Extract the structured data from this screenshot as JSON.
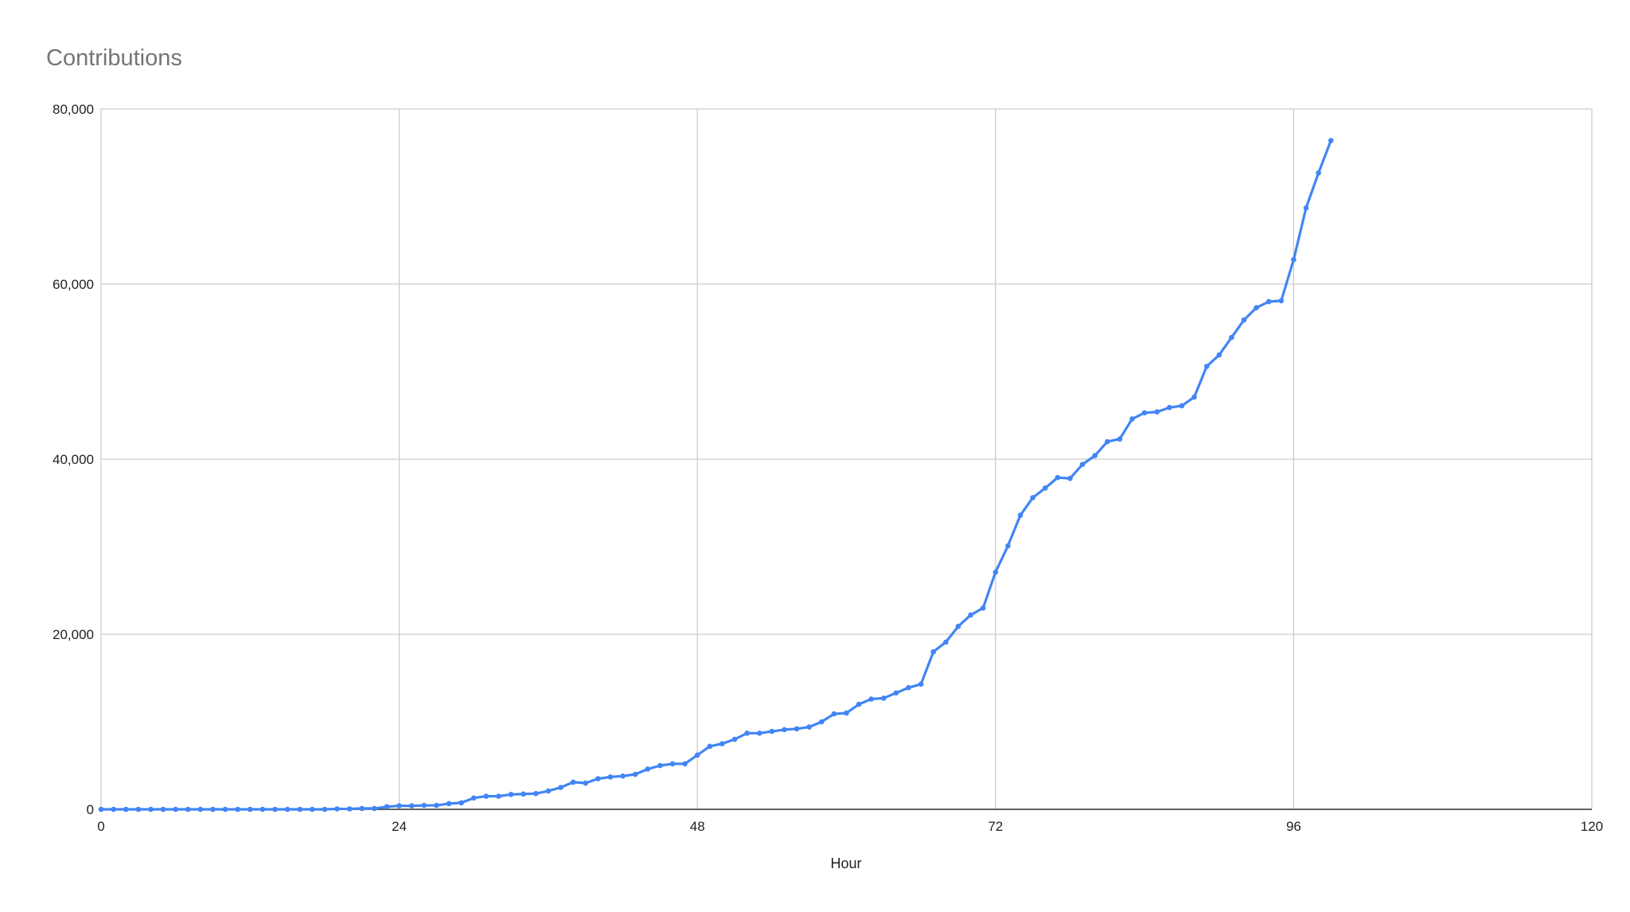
{
  "chart_data": {
    "type": "line",
    "title": "Contributions",
    "x_label": "Hour",
    "x": [
      0,
      1,
      2,
      3,
      4,
      5,
      6,
      7,
      8,
      9,
      10,
      11,
      12,
      13,
      14,
      15,
      16,
      17,
      18,
      19,
      20,
      21,
      22,
      23,
      24,
      25,
      26,
      27,
      28,
      29,
      30,
      31,
      32,
      33,
      34,
      35,
      36,
      37,
      38,
      39,
      40,
      41,
      42,
      43,
      44,
      45,
      46,
      47,
      48,
      49,
      50,
      51,
      52,
      53,
      54,
      55,
      56,
      57,
      58,
      59,
      60,
      61,
      62,
      63,
      64,
      65,
      66,
      67,
      68,
      69,
      70,
      71,
      72,
      73,
      74,
      75,
      76,
      77,
      78,
      79,
      80,
      81,
      82,
      83,
      84,
      85,
      86,
      87,
      88,
      89,
      90,
      91,
      92,
      93,
      94,
      95,
      96,
      97,
      98,
      99
    ],
    "series": [
      {
        "name": "Contributions",
        "color": "#4285f4",
        "values": [
          0,
          0,
          0,
          0,
          0,
          0,
          0,
          0,
          0,
          0,
          0,
          0,
          0,
          0,
          0,
          0,
          0,
          0,
          0,
          50,
          50,
          100,
          100,
          300,
          400,
          400,
          450,
          450,
          650,
          750,
          1300,
          1500,
          1500,
          1700,
          1750,
          1800,
          2100,
          2500,
          3100,
          3000,
          3500,
          3700,
          3800,
          4000,
          4600,
          5000,
          5200,
          5200,
          6200,
          7200,
          7500,
          8000,
          8700,
          8700,
          8900,
          9100,
          9200,
          9400,
          10000,
          10900,
          11000,
          12000,
          12600,
          12700,
          13300,
          13900,
          14300,
          18000,
          19100,
          20900,
          22200,
          23000,
          27100,
          30100,
          33600,
          35600,
          36700,
          37900,
          37800,
          39400,
          40400,
          42000,
          42300,
          44600,
          45300,
          45400,
          45900,
          46100,
          47100,
          50600,
          51900,
          53900,
          55900,
          57300,
          58000,
          58100,
          62800,
          68700,
          72700,
          76400
        ]
      }
    ],
    "xlim": [
      0,
      120
    ],
    "xticks": [
      0,
      24,
      48,
      72,
      96,
      120
    ],
    "ylim": [
      0,
      80000
    ],
    "yticks": [
      0,
      {
        "value": 20000,
        "label": "20,000"
      },
      {
        "value": 40000,
        "label": "40,000"
      },
      {
        "value": 60000,
        "label": "60,000"
      },
      {
        "value": 80000,
        "label": "80,000"
      }
    ],
    "grid": true
  }
}
